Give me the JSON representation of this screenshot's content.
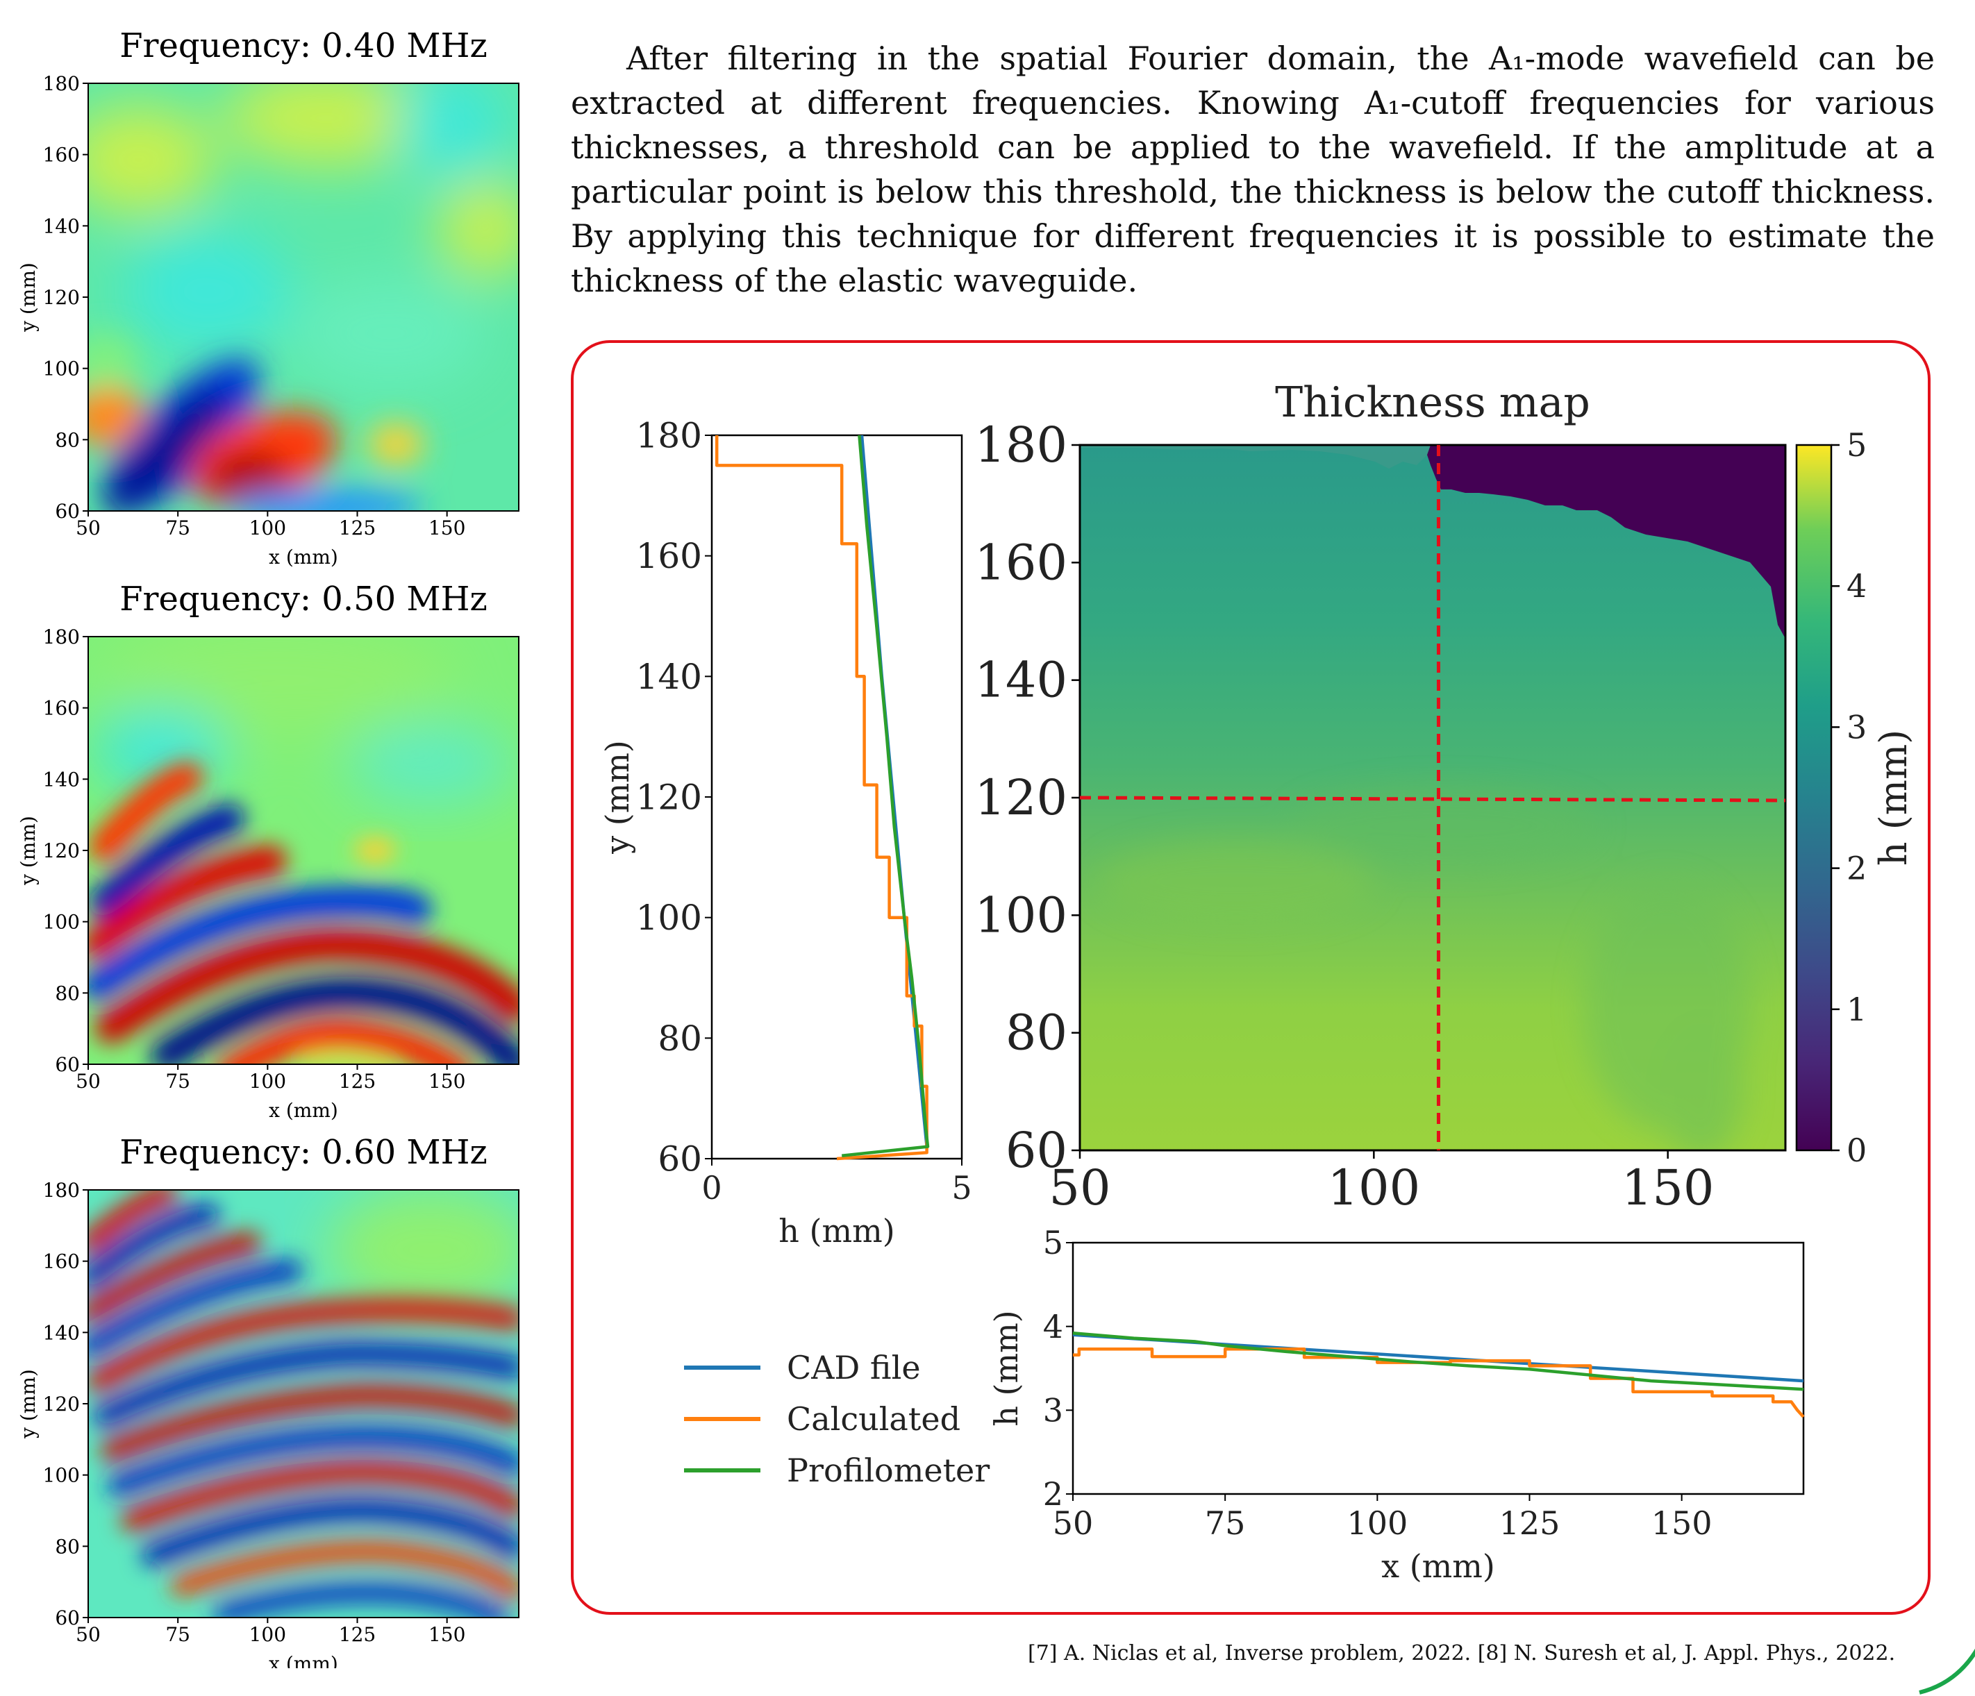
{
  "panels": [
    {
      "title": "Frequency:  0.40 MHz",
      "xlabel": "x (mm)",
      "ylabel": "y (mm)"
    },
    {
      "title": "Frequency:  0.50 MHz",
      "xlabel": "x (mm)",
      "ylabel": "y (mm)"
    },
    {
      "title": "Frequency:  0.60 MHz",
      "xlabel": "x (mm)",
      "ylabel": "y (mm)"
    }
  ],
  "paragraph": "After filtering in the spatial Fourier domain, the A₁-mode wavefield can be extracted at different frequencies. Knowing A₁-cutoff frequencies for various thicknesses, a threshold can be applied to the wavefield. If the amplitude at a particular point is below this threshold, the thickness is below the cutoff thickness. By applying this technique for different frequencies it is possible to estimate the thickness of the elastic waveguide.",
  "footnote": "[7] A. Niclas et al, Inverse problem, 2022. [8] N. Suresh et al, J. Appl. Phys., 2022.",
  "colors": {
    "cad": "#1f77b4",
    "calculated": "#ff7f0e",
    "profilometer": "#2ca02c",
    "box": "#e3101a",
    "crosshair": "#e3101a"
  },
  "chart_data": [
    {
      "type": "heatmap",
      "title": "Frequency:  0.40 MHz",
      "xlabel": "x (mm)",
      "ylabel": "y (mm)",
      "xlim": [
        50,
        170
      ],
      "ylim": [
        60,
        180
      ],
      "xticks": [
        50,
        75,
        100,
        125,
        150
      ],
      "yticks": [
        60,
        80,
        100,
        120,
        140,
        160,
        180
      ],
      "colormap": "jet"
    },
    {
      "type": "heatmap",
      "title": "Frequency:  0.50 MHz",
      "xlabel": "x (mm)",
      "ylabel": "y (mm)",
      "xlim": [
        50,
        170
      ],
      "ylim": [
        60,
        180
      ],
      "xticks": [
        50,
        75,
        100,
        125,
        150
      ],
      "yticks": [
        60,
        80,
        100,
        120,
        140,
        160,
        180
      ],
      "colormap": "jet"
    },
    {
      "type": "heatmap",
      "title": "Frequency:  0.60 MHz",
      "xlabel": "x (mm)",
      "ylabel": "y (mm)",
      "xlim": [
        50,
        170
      ],
      "ylim": [
        60,
        180
      ],
      "xticks": [
        50,
        75,
        100,
        125,
        150
      ],
      "yticks": [
        60,
        80,
        100,
        120,
        140,
        160,
        180
      ],
      "colormap": "jet"
    },
    {
      "type": "line",
      "xlabel": "h (mm)",
      "ylabel": "y (mm)",
      "xlim": [
        0,
        5
      ],
      "ylim": [
        60,
        180
      ],
      "xticks": [
        0,
        5
      ],
      "yticks": [
        60,
        80,
        100,
        120,
        140,
        160,
        180
      ],
      "series": [
        {
          "name": "CAD file",
          "x": [
            3.0,
            3.4,
            3.85,
            4.3
          ],
          "y": [
            180,
            140,
            100,
            62
          ]
        },
        {
          "name": "Calculated",
          "x": [
            0.1,
            0.1,
            2.6,
            2.6,
            2.9,
            2.9,
            3.05,
            3.05,
            3.3,
            3.3,
            3.55,
            3.55,
            3.9,
            3.9,
            4.05,
            4.05,
            4.2,
            4.2,
            4.3,
            4.3,
            2.5
          ],
          "y": [
            180,
            175,
            175,
            162,
            162,
            140,
            140,
            122,
            122,
            110,
            110,
            100,
            100,
            87,
            87,
            82,
            82,
            72,
            72,
            61,
            60
          ]
        },
        {
          "name": "Profilometer",
          "x": [
            2.95,
            3.1,
            3.3,
            3.5,
            3.65,
            3.85,
            4.0,
            4.15,
            4.28,
            4.32,
            2.6
          ],
          "y": [
            180,
            165,
            148,
            130,
            115,
            100,
            90,
            78,
            65,
            62,
            60.5
          ]
        }
      ]
    },
    {
      "type": "heatmap",
      "title": "Thickness map",
      "xlim": [
        50,
        170
      ],
      "ylim": [
        60,
        180
      ],
      "xticks": [
        50,
        100,
        150
      ],
      "yticks": [
        60,
        80,
        100,
        120,
        140,
        160,
        180
      ],
      "colorbar": {
        "label": "h (mm)",
        "range": [
          0,
          5
        ],
        "ticks": [
          0,
          1,
          2,
          3,
          4,
          5
        ],
        "colormap": "viridis"
      },
      "crosshair": {
        "x": 111,
        "y": 120
      }
    },
    {
      "type": "line",
      "xlabel": "x (mm)",
      "ylabel": "h (mm)",
      "xlim": [
        50,
        170
      ],
      "ylim": [
        2,
        5
      ],
      "xticks": [
        50,
        75,
        100,
        125,
        150
      ],
      "yticks": [
        2,
        3,
        4,
        5
      ],
      "legend": "left",
      "series": [
        {
          "name": "CAD file",
          "x": [
            50,
            170
          ],
          "y": [
            3.9,
            3.35
          ]
        },
        {
          "name": "Calculated",
          "x": [
            50,
            51,
            51,
            63,
            63,
            75,
            75,
            88,
            88,
            100,
            100,
            112,
            112,
            125,
            125,
            135,
            135,
            142,
            142,
            155,
            155,
            165,
            165,
            168,
            169,
            170
          ],
          "y": [
            3.66,
            3.66,
            3.73,
            3.73,
            3.64,
            3.64,
            3.73,
            3.73,
            3.63,
            3.63,
            3.57,
            3.57,
            3.59,
            3.59,
            3.53,
            3.53,
            3.38,
            3.38,
            3.22,
            3.22,
            3.17,
            3.17,
            3.1,
            3.1,
            3.0,
            2.92
          ]
        },
        {
          "name": "Profilometer",
          "x": [
            50,
            60,
            70,
            75,
            85,
            95,
            105,
            115,
            125,
            135,
            145,
            155,
            165,
            170
          ],
          "y": [
            3.92,
            3.86,
            3.82,
            3.77,
            3.7,
            3.64,
            3.58,
            3.53,
            3.49,
            3.42,
            3.35,
            3.31,
            3.27,
            3.25
          ]
        }
      ]
    }
  ]
}
